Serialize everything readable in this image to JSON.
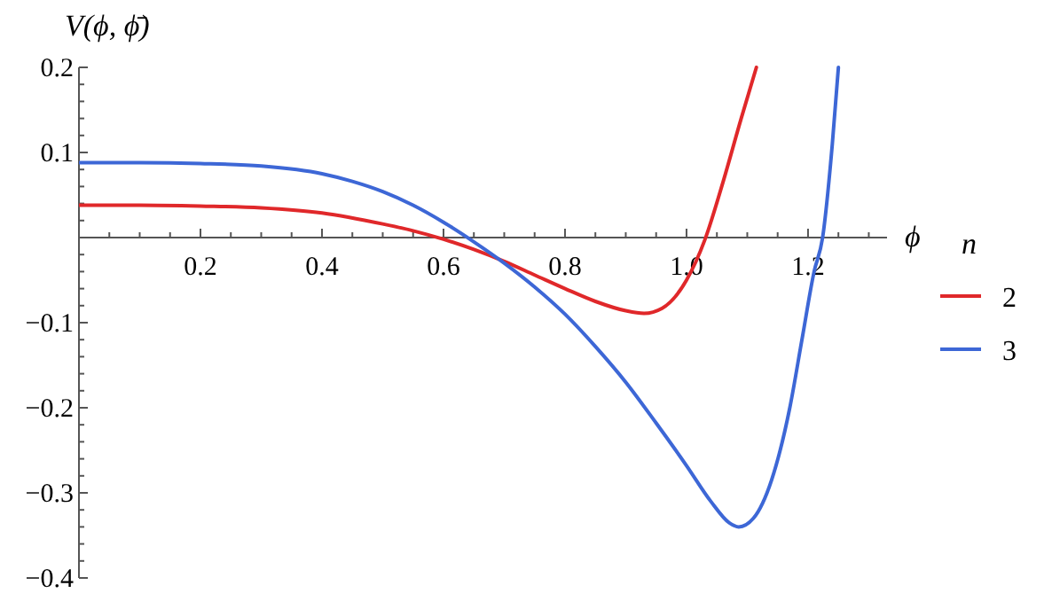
{
  "chart_data": {
    "type": "line",
    "ylabel": "V(ϕ, ϕ̄)",
    "xlabel": "ϕ",
    "legend_title": "n",
    "legend": "right",
    "grid": false,
    "marker": "none",
    "line_style": "solid",
    "xlim": [
      0,
      1.33
    ],
    "ylim": [
      -0.4,
      0.2
    ],
    "xticks": [
      {
        "value": 0.05,
        "label": null
      },
      {
        "value": 0.1,
        "label": null
      },
      {
        "value": 0.15,
        "label": null
      },
      "0.2",
      {
        "value": 0.25,
        "label": null
      },
      {
        "value": 0.3,
        "label": null
      },
      {
        "value": 0.35,
        "label": null
      },
      {
        "value": 0.4,
        "label": "0.4"
      },
      {
        "value": 0.45,
        "label": null
      },
      {
        "value": 0.5,
        "label": null
      },
      {
        "value": 0.55,
        "label": null
      },
      {
        "value": 0.6,
        "label": "0.6"
      },
      {
        "value": 0.65,
        "label": null
      },
      {
        "value": 0.7,
        "label": null
      },
      {
        "value": 0.75,
        "label": null
      },
      {
        "value": 0.8,
        "label": "0.8"
      },
      {
        "value": 0.85,
        "label": null
      },
      {
        "value": 0.9,
        "label": null
      },
      {
        "value": 0.95,
        "label": null
      },
      {
        "value": 1.0,
        "label": "1.0"
      },
      {
        "value": 1.05,
        "label": null
      },
      {
        "value": 1.1,
        "label": null
      },
      {
        "value": 1.15,
        "label": null
      },
      {
        "value": 1.2,
        "label": "1.2"
      },
      {
        "value": 1.25,
        "label": null
      },
      {
        "value": 1.3,
        "label": null
      }
    ],
    "yticks": [
      {
        "value": -0.4,
        "label": "−0.4"
      },
      {
        "value": -0.38,
        "label": null
      },
      {
        "value": -0.36,
        "label": null
      },
      {
        "value": -0.34,
        "label": null
      },
      {
        "value": -0.32,
        "label": null
      },
      {
        "value": -0.3,
        "label": "−0.3"
      },
      {
        "value": -0.28,
        "label": null
      },
      {
        "value": -0.26,
        "label": null
      },
      {
        "value": -0.24,
        "label": null
      },
      {
        "value": -0.22,
        "label": null
      },
      {
        "value": -0.2,
        "label": "−0.2"
      },
      {
        "value": -0.18,
        "label": null
      },
      {
        "value": -0.16,
        "label": null
      },
      {
        "value": -0.14,
        "label": null
      },
      {
        "value": -0.12,
        "label": null
      },
      {
        "value": -0.1,
        "label": "−0.1"
      },
      {
        "value": -0.08,
        "label": null
      },
      {
        "value": -0.06,
        "label": null
      },
      {
        "value": -0.04,
        "label": null
      },
      {
        "value": -0.02,
        "label": null
      },
      {
        "value": 0.02,
        "label": null
      },
      {
        "value": 0.04,
        "label": null
      },
      {
        "value": 0.06,
        "label": null
      },
      {
        "value": 0.08,
        "label": null
      },
      {
        "value": 0.1,
        "label": "0.1"
      },
      {
        "value": 0.12,
        "label": null
      },
      {
        "value": 0.14,
        "label": null
      },
      {
        "value": 0.16,
        "label": null
      },
      {
        "value": 0.18,
        "label": null
      },
      {
        "value": 0.2,
        "label": "0.2"
      }
    ],
    "series": [
      {
        "name": "2",
        "color": "#e0282a",
        "x": [
          0,
          0.1,
          0.2,
          0.3,
          0.4,
          0.5,
          0.55,
          0.6,
          0.65,
          0.7,
          0.75,
          0.8,
          0.85,
          0.9,
          0.93,
          0.96,
          1.0,
          1.03,
          1.06,
          1.09,
          1.115
        ],
        "values": [
          0.038,
          0.038,
          0.037,
          0.035,
          0.029,
          0.016,
          0.008,
          -0.002,
          -0.014,
          -0.028,
          -0.044,
          -0.06,
          -0.075,
          -0.086,
          -0.089,
          -0.083,
          -0.05,
          -0.003,
          0.065,
          0.14,
          0.2
        ]
      },
      {
        "name": "3",
        "color": "#3d67d6",
        "x": [
          0,
          0.1,
          0.2,
          0.3,
          0.4,
          0.45,
          0.5,
          0.55,
          0.6,
          0.65,
          0.7,
          0.75,
          0.8,
          0.85,
          0.9,
          0.95,
          1.0,
          1.04,
          1.07,
          1.086,
          1.11,
          1.14,
          1.17,
          1.19,
          1.21,
          1.224,
          1.24,
          1.25
        ],
        "values": [
          0.088,
          0.088,
          0.087,
          0.084,
          0.075,
          0.066,
          0.054,
          0.038,
          0.018,
          -0.005,
          -0.03,
          -0.058,
          -0.09,
          -0.128,
          -0.17,
          -0.218,
          -0.268,
          -0.31,
          -0.335,
          -0.34,
          -0.33,
          -0.285,
          -0.2,
          -0.12,
          -0.04,
          0.0,
          0.11,
          0.2
        ]
      }
    ]
  }
}
